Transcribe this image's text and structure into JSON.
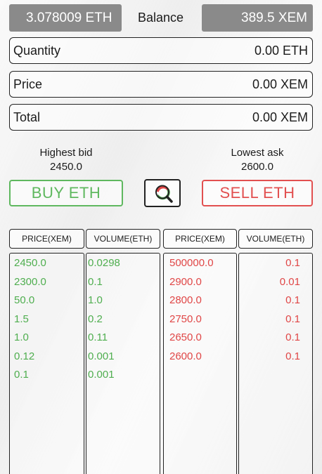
{
  "balance": {
    "eth": "3.078009  ETH",
    "label": "Balance",
    "xem": "389.5 XEM"
  },
  "form": {
    "quantity_label": "Quantity",
    "quantity_value": "0.00  ETH",
    "price_label": "Price",
    "price_value": "0.00 XEM",
    "total_label": "Total",
    "total_value": "0.00 XEM"
  },
  "market": {
    "highest_bid_label": "Highest bid",
    "highest_bid_value": "2450.0",
    "lowest_ask_label": "Lowest ask",
    "lowest_ask_value": "2600.0"
  },
  "actions": {
    "buy_label": "BUY ETH",
    "sell_label": "SELL ETH",
    "search_icon": "magnifier-icon"
  },
  "orderbook": {
    "headers": [
      "PRICE(XEM)",
      "VOLUME(ETH)",
      "PRICE(XEM)",
      "VOLUME(ETH)"
    ],
    "bids": [
      {
        "price": "2450.0",
        "volume": "0.0298"
      },
      {
        "price": "2300.0",
        "volume": "0.1"
      },
      {
        "price": "50.0",
        "volume": "1.0"
      },
      {
        "price": "1.5",
        "volume": "0.2"
      },
      {
        "price": "1.0",
        "volume": "0.11"
      },
      {
        "price": "0.12",
        "volume": "0.001"
      },
      {
        "price": "0.1",
        "volume": "0.001"
      }
    ],
    "asks": [
      {
        "price": "500000.0",
        "volume": "0.1"
      },
      {
        "price": "2900.0",
        "volume": "0.01"
      },
      {
        "price": "2800.0",
        "volume": "0.1"
      },
      {
        "price": "2750.0",
        "volume": "0.1"
      },
      {
        "price": "2650.0",
        "volume": "0.1"
      },
      {
        "price": "2600.0",
        "volume": "0.1"
      }
    ]
  },
  "colors": {
    "bid": "#4fae4f",
    "ask": "#e04646",
    "pill": "#8a8a8a"
  }
}
